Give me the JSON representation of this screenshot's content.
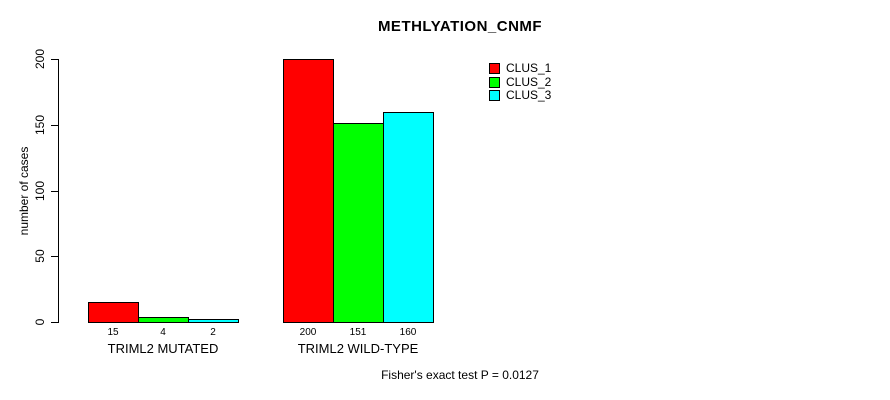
{
  "chart_data": {
    "type": "bar",
    "title": "METHLYATION_CNMF",
    "ylabel": "number of cases",
    "xlabel": "",
    "ylim": [
      0,
      200
    ],
    "yticks": [
      0,
      50,
      100,
      150,
      200
    ],
    "categories": [
      "TRIML2 MUTATED",
      "TRIML2 WILD-TYPE"
    ],
    "series": [
      {
        "name": "CLUS_1",
        "color": "#FF0000",
        "values": [
          15,
          200
        ]
      },
      {
        "name": "CLUS_2",
        "color": "#00FF00",
        "values": [
          4,
          151
        ]
      },
      {
        "name": "CLUS_3",
        "color": "#00FFFF",
        "values": [
          2,
          160
        ]
      }
    ],
    "bar_value_labels": [
      [
        "15",
        "4",
        "2"
      ],
      [
        "200",
        "151",
        "160"
      ]
    ],
    "annotation": "Fisher's exact test P = 0.0127",
    "legend_position": "top-right",
    "grid": false,
    "background": "#FFFFFF",
    "axis_color": "#000000"
  }
}
